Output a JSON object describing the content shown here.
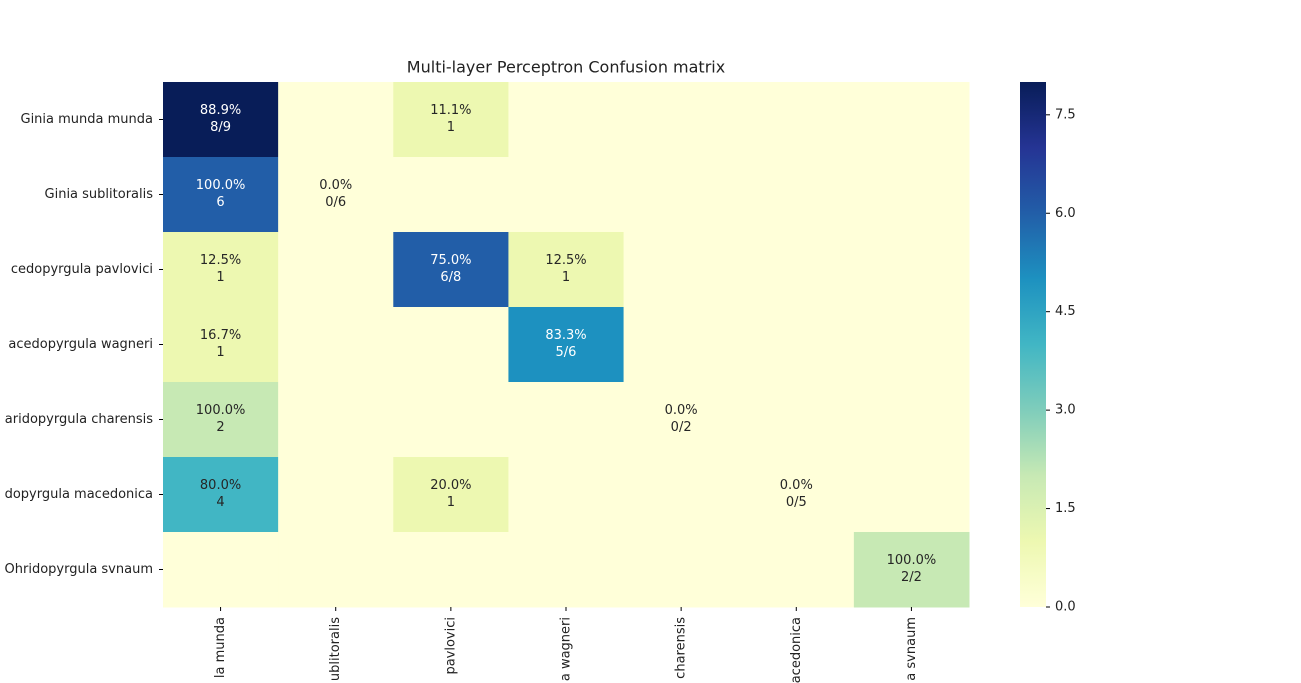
{
  "chart_data": {
    "type": "heatmap",
    "title": "Multi-layer Perceptron Confusion matrix",
    "rows": [
      "Ginia munda munda",
      "Ginia sublitoralis",
      "cedopyrgula pavlovici",
      "acedopyrgula wagneri",
      "aridopyrgula charensis",
      "dopyrgula macedonica",
      "Ohridopyrgula svnaum"
    ],
    "columns": [
      "la munda",
      "ublitoralis",
      "pavlovici",
      "a wagneri",
      "charensis",
      "acedonica",
      "a svnaum"
    ],
    "values": [
      [
        8,
        0,
        1,
        0,
        0,
        0,
        0
      ],
      [
        6,
        0,
        0,
        0,
        0,
        0,
        0
      ],
      [
        1,
        0,
        6,
        1,
        0,
        0,
        0
      ],
      [
        1,
        0,
        0,
        5,
        0,
        0,
        0
      ],
      [
        2,
        0,
        0,
        0,
        0,
        0,
        0
      ],
      [
        4,
        0,
        1,
        0,
        0,
        0,
        0
      ],
      [
        0,
        0,
        0,
        0,
        0,
        0,
        2
      ]
    ],
    "value_labels": [
      [
        [
          "88.9%",
          "8/9"
        ],
        null,
        [
          "11.1%",
          "1"
        ],
        null,
        null,
        null,
        null
      ],
      [
        [
          "100.0%",
          "6"
        ],
        [
          "0.0%",
          "0/6"
        ],
        null,
        null,
        null,
        null,
        null
      ],
      [
        [
          "12.5%",
          "1"
        ],
        null,
        [
          "75.0%",
          "6/8"
        ],
        [
          "12.5%",
          "1"
        ],
        null,
        null,
        null
      ],
      [
        [
          "16.7%",
          "1"
        ],
        null,
        null,
        [
          "83.3%",
          "5/6"
        ],
        null,
        null,
        null
      ],
      [
        [
          "100.0%",
          "2"
        ],
        null,
        null,
        null,
        [
          "0.0%",
          "0/2"
        ],
        null,
        null
      ],
      [
        [
          "80.0%",
          "4"
        ],
        null,
        [
          "20.0%",
          "1"
        ],
        null,
        null,
        [
          "0.0%",
          "0/5"
        ],
        null
      ],
      [
        null,
        null,
        null,
        null,
        null,
        null,
        [
          "100.0%",
          "2/2"
        ]
      ]
    ],
    "colors": [
      "#ffffd9",
      "#edf8b1",
      "#c7e9b4",
      "#7fcdbb",
      "#41b6c4",
      "#1d91c0",
      "#225ea8",
      "#253494",
      "#081d58"
    ],
    "clim": [
      0,
      8
    ],
    "cticks": [
      {
        "value": 0,
        "label": "0.0"
      },
      {
        "value": 1.5,
        "label": "1.5"
      },
      {
        "value": 3,
        "label": "3.0"
      },
      {
        "value": 4.5,
        "label": "4.5"
      },
      {
        "value": 6,
        "label": "6.0"
      },
      {
        "value": 7.5,
        "label": "7.5"
      }
    ]
  }
}
